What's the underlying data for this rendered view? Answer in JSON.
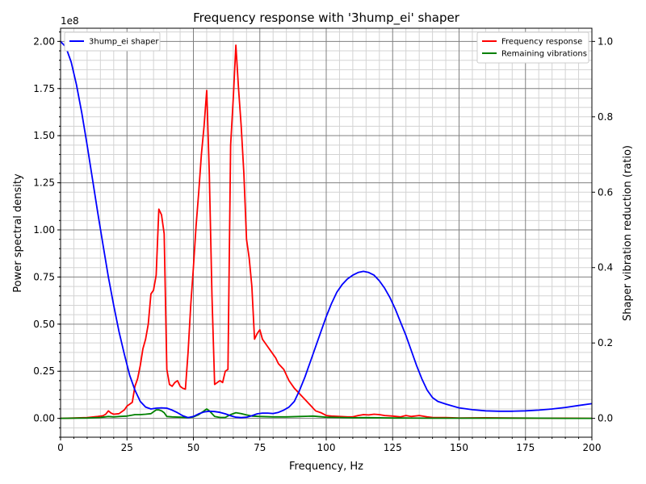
{
  "chart_data": {
    "type": "line",
    "title": "Frequency response with '3hump_ei' shaper",
    "xlabel": "Frequency, Hz",
    "ylabel": "Power spectral density",
    "ylabel_right": "Shaper vibration reduction (ratio)",
    "y_scale_label": "1e8",
    "xlim": [
      0,
      200
    ],
    "ylim": [
      -0.1,
      2.07
    ],
    "ylim_right": [
      -0.05,
      1.035
    ],
    "x_ticks": [
      0,
      25,
      50,
      75,
      100,
      125,
      150,
      175,
      200
    ],
    "x_tick_labels": [
      "0",
      "25",
      "50",
      "75",
      "100",
      "125",
      "150",
      "175",
      "200"
    ],
    "y_ticks": [
      0,
      0.25,
      0.5,
      0.75,
      1.0,
      1.25,
      1.5,
      1.75,
      2.0
    ],
    "y_tick_labels": [
      "0.00",
      "0.25",
      "0.50",
      "0.75",
      "1.00",
      "1.25",
      "1.50",
      "1.75",
      "2.00"
    ],
    "y_right_ticks": [
      0,
      0.2,
      0.4,
      0.6,
      0.8,
      1.0
    ],
    "y_right_tick_labels": [
      "0.0",
      "0.2",
      "0.4",
      "0.6",
      "0.8",
      "1.0"
    ],
    "grid": true,
    "legend_left": {
      "placement": "top-left",
      "entries": [
        {
          "name": "3hump_ei shaper",
          "color": "#0000ff"
        }
      ]
    },
    "legend_right": {
      "placement": "top-right",
      "entries": [
        {
          "name": "Frequency response",
          "color": "#ff0000"
        },
        {
          "name": "Remaining vibrations",
          "color": "#008000"
        }
      ]
    },
    "series": [
      {
        "name": "Frequency response",
        "color": "#ff0000",
        "axis": "left",
        "points": [
          [
            0,
            0
          ],
          [
            5,
            0.002
          ],
          [
            10,
            0.004
          ],
          [
            14,
            0.01
          ],
          [
            16,
            0.014
          ],
          [
            17,
            0.022
          ],
          [
            18,
            0.04
          ],
          [
            19,
            0.028
          ],
          [
            20,
            0.022
          ],
          [
            22,
            0.025
          ],
          [
            24,
            0.045
          ],
          [
            25,
            0.065
          ],
          [
            26,
            0.075
          ],
          [
            27,
            0.085
          ],
          [
            28,
            0.17
          ],
          [
            29,
            0.21
          ],
          [
            30,
            0.28
          ],
          [
            31,
            0.37
          ],
          [
            32,
            0.42
          ],
          [
            33,
            0.5
          ],
          [
            34,
            0.66
          ],
          [
            35,
            0.68
          ],
          [
            36,
            0.76
          ],
          [
            37,
            1.11
          ],
          [
            38,
            1.08
          ],
          [
            39,
            0.98
          ],
          [
            40,
            0.26
          ],
          [
            41,
            0.18
          ],
          [
            42,
            0.17
          ],
          [
            43,
            0.19
          ],
          [
            44,
            0.2
          ],
          [
            45,
            0.17
          ],
          [
            46,
            0.16
          ],
          [
            47,
            0.155
          ],
          [
            48,
            0.35
          ],
          [
            49,
            0.6
          ],
          [
            50,
            0.8
          ],
          [
            51,
            1.02
          ],
          [
            52,
            1.2
          ],
          [
            53,
            1.4
          ],
          [
            54,
            1.55
          ],
          [
            55,
            1.74
          ],
          [
            56,
            1.3
          ],
          [
            57,
            0.65
          ],
          [
            58,
            0.18
          ],
          [
            59,
            0.19
          ],
          [
            60,
            0.2
          ],
          [
            61,
            0.19
          ],
          [
            62,
            0.25
          ],
          [
            63,
            0.26
          ],
          [
            64,
            1.45
          ],
          [
            65,
            1.7
          ],
          [
            66,
            1.98
          ],
          [
            67,
            1.75
          ],
          [
            68,
            1.55
          ],
          [
            69,
            1.3
          ],
          [
            70,
            0.95
          ],
          [
            71,
            0.85
          ],
          [
            72,
            0.7
          ],
          [
            73,
            0.42
          ],
          [
            74,
            0.45
          ],
          [
            75,
            0.47
          ],
          [
            76,
            0.42
          ],
          [
            78,
            0.38
          ],
          [
            80,
            0.34
          ],
          [
            81,
            0.32
          ],
          [
            82,
            0.29
          ],
          [
            84,
            0.26
          ],
          [
            86,
            0.2
          ],
          [
            88,
            0.16
          ],
          [
            90,
            0.13
          ],
          [
            92,
            0.1
          ],
          [
            94,
            0.07
          ],
          [
            96,
            0.04
          ],
          [
            98,
            0.03
          ],
          [
            100,
            0.015
          ],
          [
            102,
            0.012
          ],
          [
            105,
            0.01
          ],
          [
            108,
            0.008
          ],
          [
            110,
            0.008
          ],
          [
            112,
            0.015
          ],
          [
            114,
            0.02
          ],
          [
            116,
            0.018
          ],
          [
            118,
            0.022
          ],
          [
            120,
            0.02
          ],
          [
            122,
            0.015
          ],
          [
            125,
            0.012
          ],
          [
            128,
            0.008
          ],
          [
            130,
            0.015
          ],
          [
            132,
            0.01
          ],
          [
            135,
            0.015
          ],
          [
            138,
            0.008
          ],
          [
            140,
            0.005
          ],
          [
            145,
            0.004
          ],
          [
            150,
            0.002
          ],
          [
            160,
            0.003
          ],
          [
            170,
            0.002
          ],
          [
            180,
            0.001
          ],
          [
            190,
            0.001
          ],
          [
            200,
            0
          ]
        ]
      },
      {
        "name": "Remaining vibrations",
        "color": "#008000",
        "axis": "left",
        "points": [
          [
            0,
            0
          ],
          [
            5,
            0.001
          ],
          [
            10,
            0.002
          ],
          [
            15,
            0.005
          ],
          [
            18,
            0.01
          ],
          [
            20,
            0.008
          ],
          [
            22,
            0.01
          ],
          [
            25,
            0.012
          ],
          [
            28,
            0.02
          ],
          [
            30,
            0.02
          ],
          [
            32,
            0.022
          ],
          [
            34,
            0.025
          ],
          [
            36,
            0.045
          ],
          [
            37,
            0.045
          ],
          [
            38,
            0.04
          ],
          [
            39,
            0.03
          ],
          [
            40,
            0.01
          ],
          [
            42,
            0.008
          ],
          [
            45,
            0.006
          ],
          [
            48,
            0.004
          ],
          [
            50,
            0.008
          ],
          [
            52,
            0.02
          ],
          [
            54,
            0.04
          ],
          [
            55,
            0.05
          ],
          [
            56,
            0.04
          ],
          [
            58,
            0.01
          ],
          [
            60,
            0.005
          ],
          [
            62,
            0.005
          ],
          [
            64,
            0.02
          ],
          [
            66,
            0.03
          ],
          [
            68,
            0.025
          ],
          [
            70,
            0.018
          ],
          [
            72,
            0.012
          ],
          [
            75,
            0.01
          ],
          [
            80,
            0.008
          ],
          [
            85,
            0.008
          ],
          [
            90,
            0.01
          ],
          [
            95,
            0.012
          ],
          [
            100,
            0.006
          ],
          [
            105,
            0.005
          ],
          [
            110,
            0.003
          ],
          [
            115,
            0.004
          ],
          [
            120,
            0.003
          ],
          [
            125,
            0.002
          ],
          [
            130,
            0.002
          ],
          [
            140,
            0.001
          ],
          [
            150,
            0.001
          ],
          [
            160,
            0.001
          ],
          [
            170,
            0.001
          ],
          [
            180,
            0.001
          ],
          [
            190,
            0
          ],
          [
            200,
            0
          ]
        ]
      },
      {
        "name": "3hump_ei shaper",
        "color": "#0000ff",
        "axis": "right",
        "points": [
          [
            0,
            1.0
          ],
          [
            2,
            0.985
          ],
          [
            4,
            0.945
          ],
          [
            6,
            0.885
          ],
          [
            8,
            0.81
          ],
          [
            10,
            0.725
          ],
          [
            12,
            0.635
          ],
          [
            14,
            0.545
          ],
          [
            16,
            0.46
          ],
          [
            18,
            0.375
          ],
          [
            20,
            0.3
          ],
          [
            22,
            0.23
          ],
          [
            24,
            0.17
          ],
          [
            26,
            0.115
          ],
          [
            28,
            0.075
          ],
          [
            30,
            0.045
          ],
          [
            32,
            0.03
          ],
          [
            34,
            0.025
          ],
          [
            36,
            0.027
          ],
          [
            38,
            0.028
          ],
          [
            40,
            0.027
          ],
          [
            42,
            0.022
          ],
          [
            44,
            0.015
          ],
          [
            46,
            0.007
          ],
          [
            48,
            0.002
          ],
          [
            50,
            0.005
          ],
          [
            52,
            0.012
          ],
          [
            54,
            0.017
          ],
          [
            56,
            0.019
          ],
          [
            58,
            0.018
          ],
          [
            60,
            0.016
          ],
          [
            62,
            0.012
          ],
          [
            64,
            0.007
          ],
          [
            66,
            0.003
          ],
          [
            68,
            0.002
          ],
          [
            70,
            0.003
          ],
          [
            72,
            0.007
          ],
          [
            74,
            0.012
          ],
          [
            76,
            0.014
          ],
          [
            78,
            0.014
          ],
          [
            80,
            0.013
          ],
          [
            82,
            0.016
          ],
          [
            84,
            0.022
          ],
          [
            86,
            0.03
          ],
          [
            88,
            0.045
          ],
          [
            90,
            0.075
          ],
          [
            92,
            0.11
          ],
          [
            94,
            0.15
          ],
          [
            96,
            0.19
          ],
          [
            98,
            0.23
          ],
          [
            100,
            0.27
          ],
          [
            102,
            0.305
          ],
          [
            104,
            0.335
          ],
          [
            106,
            0.355
          ],
          [
            108,
            0.37
          ],
          [
            110,
            0.38
          ],
          [
            112,
            0.387
          ],
          [
            114,
            0.39
          ],
          [
            116,
            0.387
          ],
          [
            118,
            0.38
          ],
          [
            120,
            0.365
          ],
          [
            122,
            0.345
          ],
          [
            124,
            0.32
          ],
          [
            126,
            0.29
          ],
          [
            128,
            0.255
          ],
          [
            130,
            0.22
          ],
          [
            132,
            0.18
          ],
          [
            134,
            0.14
          ],
          [
            136,
            0.105
          ],
          [
            138,
            0.075
          ],
          [
            140,
            0.055
          ],
          [
            142,
            0.045
          ],
          [
            145,
            0.038
          ],
          [
            148,
            0.032
          ],
          [
            150,
            0.028
          ],
          [
            155,
            0.023
          ],
          [
            160,
            0.02
          ],
          [
            165,
            0.019
          ],
          [
            170,
            0.019
          ],
          [
            175,
            0.02
          ],
          [
            180,
            0.022
          ],
          [
            185,
            0.025
          ],
          [
            190,
            0.029
          ],
          [
            195,
            0.034
          ],
          [
            200,
            0.039
          ]
        ]
      }
    ]
  }
}
